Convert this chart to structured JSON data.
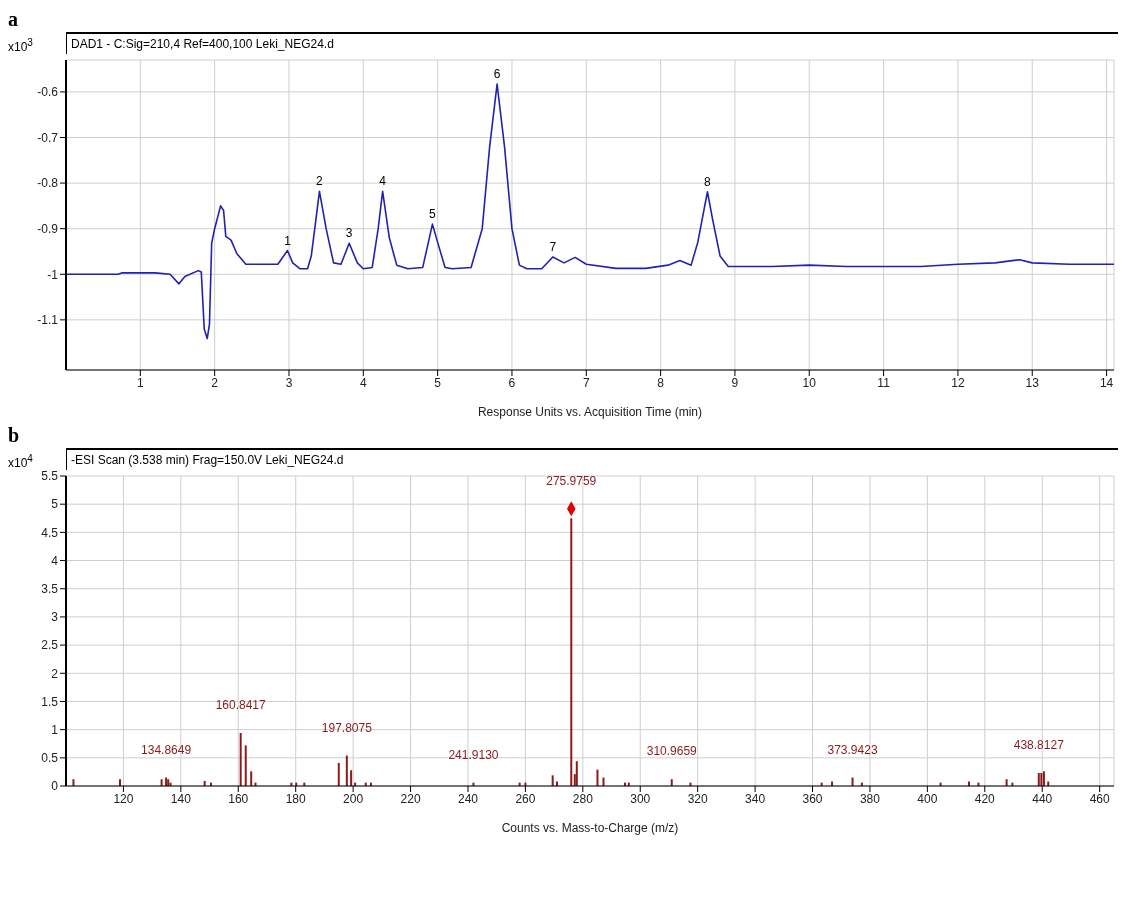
{
  "chart_data": [
    {
      "type": "line",
      "title": "a",
      "subtitle": "DAD1 - C:Sig=210,4  Ref=400,100 Leki_NEG24.d",
      "xlabel": "Response Units vs. Acquisition Time (min)",
      "ylabel": "x10$^{3}$",
      "series": [
        {
          "color": "#2222b0",
          "x": [
            0,
            0.7,
            0.75,
            1.2,
            1.4,
            1.52,
            1.6,
            1.78,
            1.82,
            1.86,
            1.9,
            1.93,
            1.96,
            2.0,
            2.08,
            2.12,
            2.15,
            2.22,
            2.3,
            2.42,
            2.5,
            2.85,
            2.98,
            3.05,
            3.15,
            3.25,
            3.3,
            3.41,
            3.5,
            3.6,
            3.7,
            3.81,
            3.92,
            4.0,
            4.12,
            4.2,
            4.26,
            4.35,
            4.45,
            4.6,
            4.8,
            4.93,
            5.0,
            5.1,
            5.2,
            5.45,
            5.6,
            5.7,
            5.8,
            5.9,
            6.0,
            6.1,
            6.2,
            6.4,
            6.55,
            6.7,
            6.85,
            7.0,
            7.4,
            7.8,
            8.1,
            8.26,
            8.41,
            8.5,
            8.63,
            8.7,
            8.8,
            8.91,
            9.5,
            10.0,
            10.5,
            11.0,
            11.5,
            12.0,
            12.5,
            12.83,
            13.0,
            13.5,
            14.0,
            14.1
          ],
          "values": [
            -1.0,
            -1.0,
            -0.997,
            -0.997,
            -1.0,
            -1.021,
            -1.005,
            -0.992,
            -0.995,
            -1.12,
            -1.141,
            -1.11,
            -0.932,
            -0.9,
            -0.85,
            -0.86,
            -0.917,
            -0.925,
            -0.955,
            -0.978,
            -0.978,
            -0.978,
            -0.948,
            -0.975,
            -0.988,
            -0.988,
            -0.96,
            -0.818,
            -0.9,
            -0.975,
            -0.978,
            -0.932,
            -0.975,
            -0.988,
            -0.985,
            -0.9,
            -0.818,
            -0.92,
            -0.98,
            -0.988,
            -0.985,
            -0.89,
            -0.93,
            -0.985,
            -0.988,
            -0.985,
            -0.9,
            -0.72,
            -0.583,
            -0.72,
            -0.9,
            -0.98,
            -0.988,
            -0.988,
            -0.962,
            -0.975,
            -0.963,
            -0.978,
            -0.987,
            -0.987,
            -0.98,
            -0.97,
            -0.98,
            -0.93,
            -0.819,
            -0.88,
            -0.96,
            -0.983,
            -0.983,
            -0.98,
            -0.983,
            -0.983,
            -0.983,
            -0.978,
            -0.975,
            -0.968,
            -0.975,
            -0.978,
            -0.978,
            -0.978
          ]
        }
      ],
      "xlim": [
        0,
        14.1
      ],
      "xticks": [
        1,
        2,
        3,
        4,
        5,
        6,
        7,
        8,
        9,
        10,
        11,
        12,
        13,
        14
      ],
      "ylim": [
        -1.21,
        -0.53
      ],
      "yticks": [
        -1.1,
        -1,
        -0.9,
        -0.8,
        -0.7,
        -0.6
      ],
      "grid": true,
      "annotations": [
        {
          "text": "1",
          "x": 2.98,
          "y": -0.948
        },
        {
          "text": "2",
          "x": 3.41,
          "y": -0.818
        },
        {
          "text": "3",
          "x": 3.81,
          "y": -0.932
        },
        {
          "text": "4",
          "x": 4.26,
          "y": -0.818
        },
        {
          "text": "5",
          "x": 4.93,
          "y": -0.89
        },
        {
          "text": "6",
          "x": 5.8,
          "y": -0.583
        },
        {
          "text": "7",
          "x": 6.55,
          "y": -0.962
        },
        {
          "text": "8",
          "x": 8.63,
          "y": -0.819
        }
      ]
    },
    {
      "type": "bar",
      "title": "b",
      "subtitle": "-ESI Scan (3.538 min)  Frag=150.0V Leki_NEG24.d",
      "xlabel": "Counts vs. Mass-to-Charge (m/z)",
      "ylabel": "x10$^{4}$",
      "marker": "diamond",
      "series": [
        {
          "color": "#8b1a1a",
          "x": [
            102.6,
            118.8,
            133.3,
            134.86,
            135.6,
            136.4,
            148.3,
            150.5,
            160.84,
            162.6,
            164.5,
            166,
            178.5,
            180.2,
            183,
            195,
            197.81,
            199.3,
            200.7,
            204.4,
            206.2,
            241.91,
            258,
            260,
            269.5,
            271,
            275.98,
            277.2,
            277.9,
            285.1,
            287.2,
            294.7,
            296,
            310.97,
            317.5,
            363.2,
            366.8,
            373.94,
            377.2,
            404.6,
            414.5,
            417.8,
            427.6,
            429.6,
            438.81,
            439.7,
            440.6,
            442.1
          ],
          "values": [
            0.12,
            0.12,
            0.12,
            0.15,
            0.12,
            0.06,
            0.09,
            0.06,
            0.94,
            0.72,
            0.26,
            0.06,
            0.06,
            0.06,
            0.06,
            0.41,
            0.54,
            0.28,
            0.06,
            0.06,
            0.06,
            0.06,
            0.06,
            0.06,
            0.19,
            0.08,
            4.75,
            0.21,
            0.44,
            0.29,
            0.15,
            0.06,
            0.06,
            0.12,
            0.06,
            0.06,
            0.08,
            0.15,
            0.06,
            0.06,
            0.08,
            0.06,
            0.12,
            0.06,
            0.23,
            0.23,
            0.26,
            0.08
          ]
        },
        {
          "type": "scatter",
          "color": "#e00000",
          "x": [
            275.98
          ],
          "values": [
            4.92
          ]
        }
      ],
      "xlim": [
        100,
        465
      ],
      "xticks": [
        120,
        140,
        160,
        180,
        200,
        220,
        240,
        260,
        280,
        300,
        320,
        340,
        360,
        380,
        400,
        420,
        440,
        460
      ],
      "ylim": [
        0,
        5.5
      ],
      "yticks": [
        0,
        0.5,
        1,
        1.5,
        2,
        2.5,
        3,
        3.5,
        4,
        4.5,
        5,
        5.5
      ],
      "grid": true,
      "annotations": [
        {
          "text": "134.8649",
          "x": 134.86,
          "y": 0.15
        },
        {
          "text": "160.8417",
          "x": 160.84,
          "y": 0.94
        },
        {
          "text": "197.8075",
          "x": 197.81,
          "y": 0.54
        },
        {
          "text": "241.9130",
          "x": 241.91,
          "y": 0.06
        },
        {
          "text": "275.9759",
          "x": 275.98,
          "y": 4.92
        },
        {
          "text": "310.9659",
          "x": 310.97,
          "y": 0.12
        },
        {
          "text": "373.9423",
          "x": 373.94,
          "y": 0.15
        },
        {
          "text": "438.8127",
          "x": 438.81,
          "y": 0.23
        }
      ]
    }
  ]
}
